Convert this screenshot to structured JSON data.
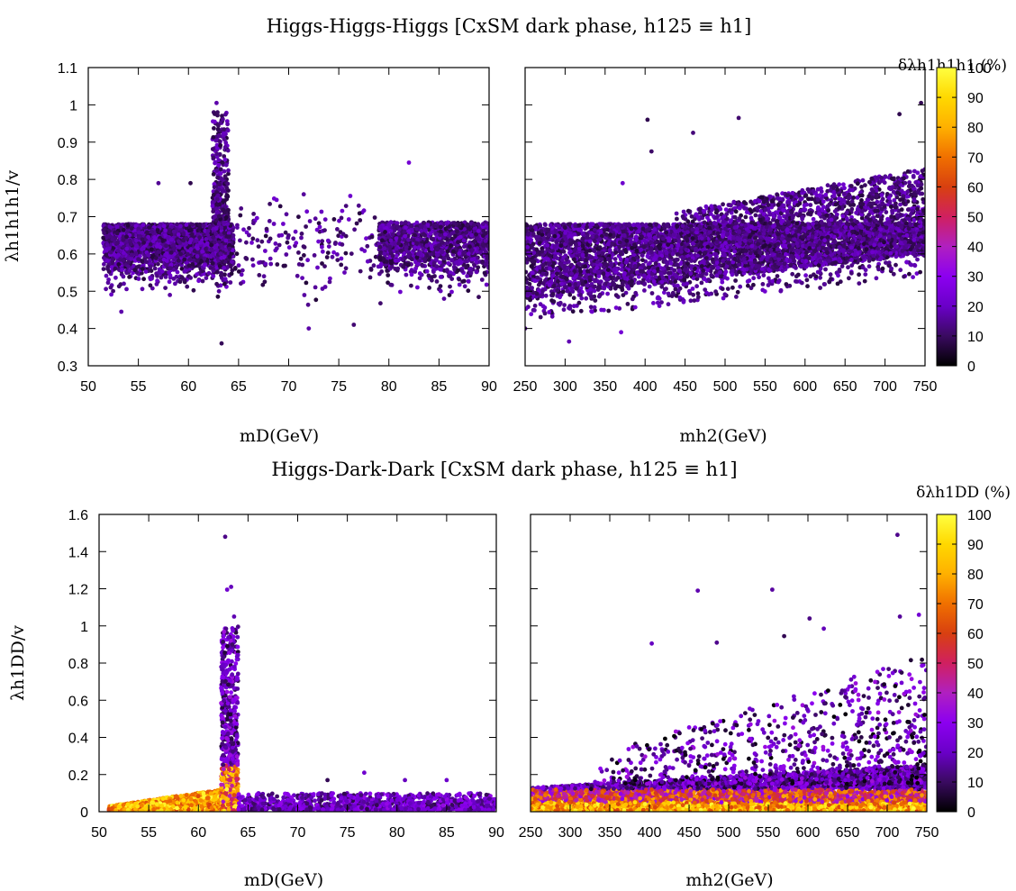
{
  "colors": {
    "colormap": [
      "#000000",
      "#3a0a60",
      "#6a00c8",
      "#8c00f0",
      "#b020c0",
      "#d02060",
      "#d84010",
      "#f07000",
      "#ffb000",
      "#ffd800",
      "#ffff40"
    ],
    "frame": "#000000"
  },
  "chart_data": [
    {
      "type": "scatter",
      "title": "Higgs-Higgs-Higgs [CxSM dark phase, h125 ≡ h1]",
      "xlabel": "mD(GeV)",
      "ylabel": "λh1h1h1/v",
      "xlim": [
        50,
        90
      ],
      "ylim": [
        0.3,
        1.1
      ],
      "xticks": [
        "50",
        "55",
        "60",
        "65",
        "70",
        "75",
        "80",
        "85",
        "90"
      ],
      "yticks": [
        "0.3",
        "0.4",
        "0.5",
        "0.6",
        "0.7",
        "0.8",
        "0.9",
        "1",
        "1.1"
      ],
      "color_label": "δλh1h1h1 (%)",
      "point_clusters": [
        {
          "x_range": [
            51.5,
            64.5
          ],
          "y_center": 0.62,
          "y_spread": 0.05,
          "note": "dense band below 0.68, color 5-20%"
        },
        {
          "x_range": [
            62.3,
            64
          ],
          "y_range": [
            0.68,
            1.0
          ],
          "note": "resonance spike near mD ≈ mh/2"
        },
        {
          "x_range": [
            64.5,
            79
          ],
          "y_range": [
            0.4,
            0.74
          ],
          "note": "sparse points"
        },
        {
          "x_range": [
            79,
            90
          ],
          "y_center": 0.62,
          "y_spread": 0.06,
          "note": "band of points"
        }
      ],
      "sample_points": [
        [
          62.8,
          1.005
        ],
        [
          62.9,
          0.98
        ],
        [
          82,
          0.845
        ],
        [
          57,
          0.79
        ],
        [
          60.2,
          0.79
        ],
        [
          71.5,
          0.76
        ],
        [
          63.3,
          0.36
        ],
        [
          72,
          0.4
        ],
        [
          76.5,
          0.41
        ],
        [
          53.3,
          0.445
        ]
      ]
    },
    {
      "type": "scatter",
      "xlabel": "mh2(GeV)",
      "ylabel": "",
      "xlim": [
        250,
        750
      ],
      "ylim": [
        0.3,
        1.1
      ],
      "xticks": [
        "250",
        "300",
        "350",
        "400",
        "450",
        "500",
        "550",
        "600",
        "650",
        "700",
        "750"
      ],
      "yticks": [],
      "color_label": "δλh1h1h1 (%)",
      "point_clusters": [
        {
          "x_range": [
            250,
            750
          ],
          "y_upper": 0.68,
          "y_lower_at_250": 0.48,
          "y_lower_at_750": 0.6,
          "note": "dense band, color 5-20%"
        },
        {
          "x_range": [
            450,
            750
          ],
          "y_range": [
            0.68,
            0.85
          ],
          "note": "upper fringe rising with mh2"
        }
      ],
      "sample_points": [
        [
          403,
          0.96
        ],
        [
          517,
          0.965
        ],
        [
          460,
          0.925
        ],
        [
          408,
          0.875
        ],
        [
          718,
          0.975
        ],
        [
          745,
          1.005
        ],
        [
          305,
          0.365
        ],
        [
          370,
          0.39
        ],
        [
          250,
          0.4
        ],
        [
          372,
          0.79
        ]
      ]
    },
    {
      "type": "scatter",
      "title": "Higgs-Dark-Dark [CxSM dark phase, h125 ≡ h1]",
      "xlabel": "mD(GeV)",
      "ylabel": "λh1DD/v",
      "xlim": [
        50,
        90
      ],
      "ylim": [
        0,
        1.6
      ],
      "xticks": [
        "50",
        "55",
        "60",
        "65",
        "70",
        "75",
        "80",
        "85",
        "90"
      ],
      "yticks": [
        "0",
        "0.2",
        "0.4",
        "0.6",
        "0.8",
        "1",
        "1.2",
        "1.4",
        "1.6"
      ],
      "color_label": "δλh1DD (%)",
      "point_clusters": [
        {
          "x_range": [
            51,
            62
          ],
          "y_range": [
            0,
            0.12
          ],
          "note": "rising band, colors 60-100%"
        },
        {
          "x_range": [
            62.3,
            64
          ],
          "y_range": [
            0,
            1.2
          ],
          "note": "resonance spike, colors 10-100%"
        },
        {
          "x_range": [
            64,
            90
          ],
          "y_range": [
            0,
            0.1
          ],
          "note": "low flat band, colors 10-30%"
        }
      ],
      "sample_points": [
        [
          62.7,
          1.48
        ],
        [
          63.3,
          1.21
        ],
        [
          62.9,
          1.195
        ],
        [
          63.6,
          1.05
        ],
        [
          76.7,
          0.21
        ],
        [
          80.8,
          0.17
        ],
        [
          85,
          0.17
        ],
        [
          73,
          0.17
        ]
      ]
    },
    {
      "type": "scatter",
      "xlabel": "mh2(GeV)",
      "ylabel": "",
      "xlim": [
        250,
        750
      ],
      "ylim": [
        0,
        1.6
      ],
      "xticks": [
        "250",
        "300",
        "350",
        "400",
        "450",
        "500",
        "550",
        "600",
        "650",
        "700",
        "750"
      ],
      "yticks": [],
      "color_label": "δλh1DD (%)",
      "point_clusters": [
        {
          "x_range": [
            250,
            750
          ],
          "y_range": [
            0,
            0.2
          ],
          "note": "dense band, yellow/orange near 0, purple/black above"
        },
        {
          "x_range": [
            350,
            750
          ],
          "y_range": [
            0.2,
            0.7
          ],
          "note": "scatter rising with mh2"
        }
      ],
      "sample_points": [
        [
          713,
          1.49
        ],
        [
          461,
          1.19
        ],
        [
          555,
          1.195
        ],
        [
          602,
          1.04
        ],
        [
          620,
          0.985
        ],
        [
          403,
          0.905
        ],
        [
          485,
          0.91
        ],
        [
          570,
          0.945
        ],
        [
          716,
          1.05
        ],
        [
          740,
          1.06
        ]
      ]
    }
  ],
  "colorbar": {
    "ticks": [
      "0",
      "10",
      "20",
      "30",
      "40",
      "50",
      "60",
      "70",
      "80",
      "90",
      "100"
    ],
    "range": [
      0,
      100
    ]
  }
}
